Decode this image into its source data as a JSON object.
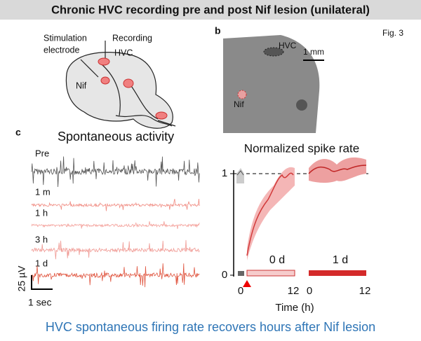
{
  "header": {
    "title": "Chronic HVC recording pre and post Nif lesion (unilateral)",
    "figure": "Fig. 3"
  },
  "panel_a": {
    "labels": [
      "Stimulation",
      "electrode",
      "Recording",
      "HVC",
      "Nif"
    ]
  },
  "panel_b": {
    "letter": "b",
    "labels": [
      "HVC",
      "1 mm",
      "Nif"
    ]
  },
  "panel_c": {
    "letter": "c",
    "title": "Spontaneous activity",
    "traces": [
      "Pre",
      "1 m",
      "1 h",
      "3 h",
      "1 d"
    ],
    "scale": {
      "amplitude": "25 µV",
      "time": "1 sec"
    },
    "plot": {
      "title": "Normalized spike rate",
      "yticks": [
        "1",
        "0"
      ],
      "groups": [
        "0 d",
        "1 d"
      ],
      "xticks": [
        "0",
        "12",
        "0",
        "12"
      ],
      "xlabel": "Time (h)"
    }
  },
  "caption": "HVC spontaneous firing rate recovers hours after Nif lesion"
}
